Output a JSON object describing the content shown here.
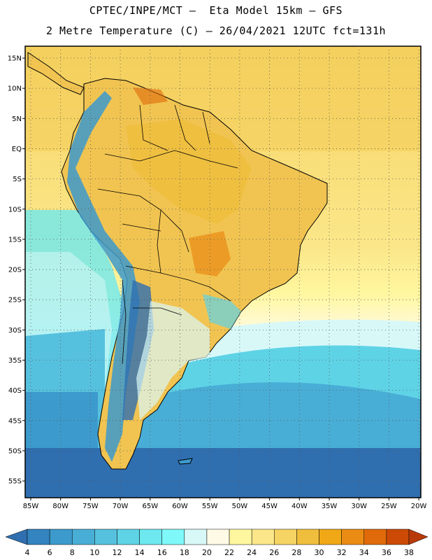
{
  "header": {
    "line1": "CPTEC/INPE/MCT –  Eta Model 15km – GFS",
    "line2": "2 Metre Temperature (C) – 26/04/2021 12UTC fct=131h"
  },
  "map": {
    "lat_labels": [
      "15N",
      "10N",
      "5N",
      "EQ",
      "5S",
      "10S",
      "15S",
      "20S",
      "25S",
      "30S",
      "35S",
      "40S",
      "45S",
      "50S",
      "55S"
    ],
    "lon_labels": [
      "85W",
      "80W",
      "75W",
      "70W",
      "65W",
      "60W",
      "55W",
      "50W",
      "45W",
      "40W",
      "35W",
      "30W",
      "25W",
      "20W"
    ]
  },
  "colorbar": {
    "labels": [
      "4",
      "6",
      "8",
      "10",
      "12",
      "14",
      "16",
      "18",
      "20",
      "22",
      "24",
      "26",
      "28",
      "30",
      "32",
      "34",
      "36",
      "38"
    ],
    "colors": [
      "#2f6fb0",
      "#3384bf",
      "#3d9acc",
      "#49aed6",
      "#56c1de",
      "#5fd3e6",
      "#6ee8ef",
      "#7ef8f8",
      "#d8f8f8",
      "#fffae6",
      "#fff7a0",
      "#fbe78a",
      "#f6d464",
      "#efbe3c",
      "#f1a816",
      "#ea8c14",
      "#e06a0a",
      "#cc4a06",
      "#b83a0a"
    ]
  }
}
